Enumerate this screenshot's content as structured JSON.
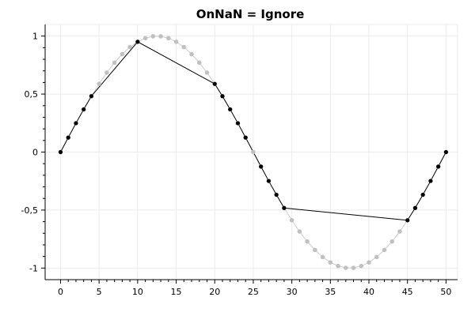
{
  "chart_data": {
    "type": "line",
    "title": "OnNaN = Ignore",
    "xlabel": "",
    "ylabel": "",
    "xlim": [
      -2,
      51.5
    ],
    "ylim": [
      -1.1,
      1.1
    ],
    "grid": true,
    "x_ticks": [
      0,
      5,
      10,
      15,
      20,
      25,
      30,
      35,
      40,
      45,
      50
    ],
    "x_tick_labels": [
      "0",
      "5",
      "10",
      "15",
      "20",
      "25",
      "30",
      "35",
      "40",
      "45",
      "50"
    ],
    "y_ticks": [
      1,
      0.5,
      0,
      -0.5,
      -1
    ],
    "y_tick_labels": [
      "1",
      "0,5",
      "0",
      "-0,5",
      "-1"
    ],
    "colors": {
      "grid": "#ebebeb",
      "axis": "#000000",
      "primary": "#000000",
      "secondary": "#c0c0c0"
    },
    "series": [
      {
        "style": "underlying-gray",
        "x": [
          0,
          1,
          2,
          3,
          4,
          5,
          6,
          7,
          8,
          9,
          10,
          11,
          12,
          13,
          14,
          15,
          16,
          17,
          18,
          19,
          20,
          21,
          22,
          23,
          24,
          25,
          26,
          27,
          28,
          29,
          30,
          31,
          32,
          33,
          34,
          35,
          36,
          37,
          38,
          39,
          40,
          41,
          42,
          43,
          44,
          45,
          46,
          47,
          48,
          49,
          50
        ],
        "y": [
          0,
          0.125,
          0.249,
          0.368,
          0.482,
          0.588,
          0.685,
          0.771,
          0.844,
          0.905,
          0.951,
          0.982,
          0.998,
          0.998,
          0.982,
          0.951,
          0.905,
          0.844,
          0.771,
          0.685,
          0.588,
          0.482,
          0.368,
          0.249,
          0.125,
          0,
          -0.125,
          -0.249,
          -0.368,
          -0.482,
          -0.588,
          -0.685,
          -0.771,
          -0.844,
          -0.905,
          -0.951,
          -0.982,
          -0.998,
          -0.998,
          -0.982,
          -0.951,
          -0.905,
          -0.844,
          -0.771,
          -0.685,
          -0.588,
          -0.482,
          -0.368,
          -0.249,
          -0.125,
          0
        ]
      },
      {
        "style": "visible-black",
        "x": [
          0,
          1,
          2,
          3,
          4,
          10,
          20,
          21,
          22,
          23,
          24,
          26,
          27,
          28,
          29,
          45,
          46,
          47,
          48,
          49,
          50
        ],
        "y": [
          0,
          0.125,
          0.249,
          0.368,
          0.482,
          0.951,
          0.588,
          0.482,
          0.368,
          0.249,
          0.125,
          -0.125,
          -0.249,
          -0.368,
          -0.482,
          -0.588,
          -0.482,
          -0.368,
          -0.249,
          -0.125,
          0
        ]
      }
    ]
  }
}
